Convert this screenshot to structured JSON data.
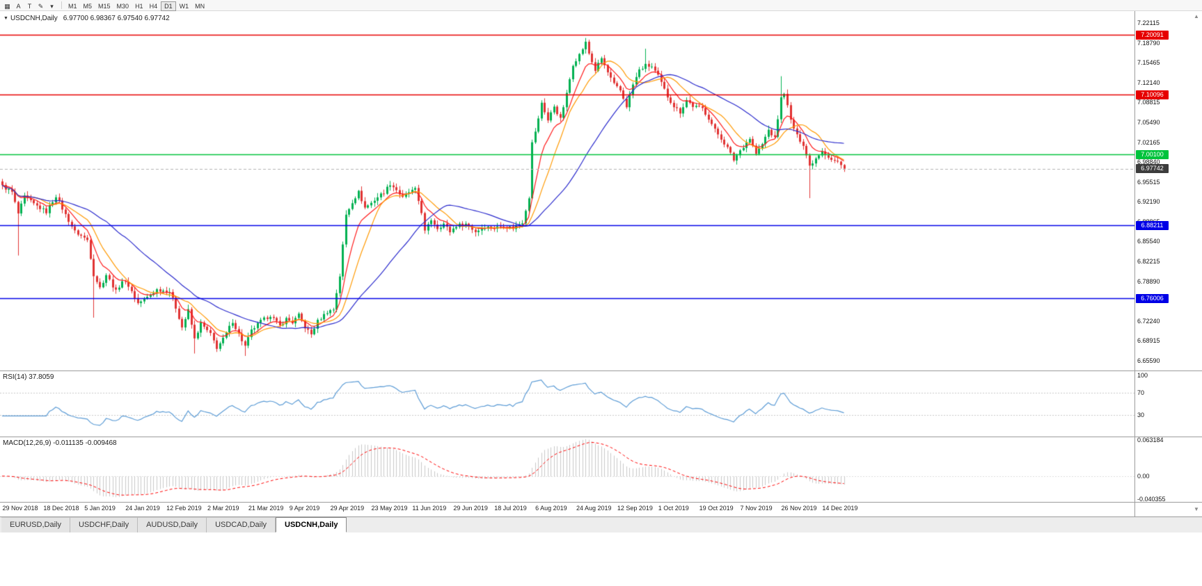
{
  "toolbar": {
    "icons": [
      {
        "name": "chart-window-icon",
        "glyph": "▦"
      },
      {
        "name": "cursor-a-icon",
        "glyph": "A"
      },
      {
        "name": "text-tool-icon",
        "glyph": "T"
      },
      {
        "name": "draw-tool-icon",
        "glyph": "✎"
      },
      {
        "name": "tool-dropdown-icon",
        "glyph": "▾"
      }
    ],
    "timeframes": [
      {
        "label": "M1",
        "active": false
      },
      {
        "label": "M5",
        "active": false
      },
      {
        "label": "M15",
        "active": false
      },
      {
        "label": "M30",
        "active": false
      },
      {
        "label": "H1",
        "active": false
      },
      {
        "label": "H4",
        "active": false
      },
      {
        "label": "D1",
        "active": true
      },
      {
        "label": "W1",
        "active": false
      },
      {
        "label": "MN",
        "active": false
      }
    ]
  },
  "chart": {
    "symbol_legend": "USDCNH,Daily",
    "ohlc_text": "6.97700 6.98367 6.97540 6.97742",
    "expand_glyph": "▼",
    "price_axis": {
      "min": 6.6396,
      "max": 7.2409
    },
    "price_axis_labels": [
      "7.22115",
      "7.18790",
      "7.15465",
      "7.12140",
      "7.08815",
      "7.05490",
      "7.02165",
      "6.98840",
      "6.95515",
      "6.92190",
      "6.88865",
      "6.85540",
      "6.82215",
      "6.78890",
      "6.75565",
      "6.72240",
      "6.68915",
      "6.65590"
    ],
    "hlines": [
      {
        "price": 7.20091,
        "label": "7.20091",
        "color": "#e60000"
      },
      {
        "price": 7.10096,
        "label": "7.10096",
        "color": "#e60000"
      },
      {
        "price": 7.001,
        "label": "7.00100",
        "color": "#00c33c"
      },
      {
        "price": 6.88211,
        "label": "6.88211",
        "color": "#0000e6"
      },
      {
        "price": 6.76006,
        "label": "6.76006",
        "color": "#0000e6"
      }
    ],
    "current_price": {
      "value": 6.97742,
      "label": "6.97742",
      "line_color": "#b0b0b0",
      "tag_bg": "#3c3c3c"
    }
  },
  "rsi": {
    "legend": "RSI(14) 37.8059",
    "period": 14,
    "line_color": "#5b9bd5",
    "level_line_color": "#c8c8c8",
    "levels": [
      {
        "value": 100,
        "label": "100"
      },
      {
        "value": 70,
        "label": "70"
      },
      {
        "value": 30,
        "label": "30"
      }
    ]
  },
  "macd": {
    "legend": "MACD(12,26,9) -0.011135 -0.009468",
    "fast": 12,
    "slow": 26,
    "signal": 9,
    "histogram_color": "#c8c8c8",
    "signal_color": "#ff0000",
    "range": {
      "min": -0.040355,
      "max": 0.063184
    },
    "axis_labels": [
      {
        "value": 0.063184,
        "label": "0.063184"
      },
      {
        "value": 0,
        "label": "0.00"
      },
      {
        "value": -0.040355,
        "label": "-0.040355"
      }
    ]
  },
  "date_axis": {
    "labels": [
      {
        "text": "29 Nov 2018",
        "bar": 1
      },
      {
        "text": "18 Dec 2018",
        "bar": 14
      },
      {
        "text": "5 Jan 2019",
        "bar": 27
      },
      {
        "text": "24 Jan 2019",
        "bar": 40
      },
      {
        "text": "12 Feb 2019",
        "bar": 53
      },
      {
        "text": "2 Mar 2019",
        "bar": 66
      },
      {
        "text": "21 Mar 2019",
        "bar": 79
      },
      {
        "text": "9 Apr 2019",
        "bar": 92
      },
      {
        "text": "29 Apr 2019",
        "bar": 105
      },
      {
        "text": "23 May 2019",
        "bar": 118
      },
      {
        "text": "11 Jun 2019",
        "bar": 131
      },
      {
        "text": "29 Jun 2019",
        "bar": 144
      },
      {
        "text": "18 Jul 2019",
        "bar": 157
      },
      {
        "text": "6 Aug 2019",
        "bar": 170
      },
      {
        "text": "24 Aug 2019",
        "bar": 183
      },
      {
        "text": "12 Sep 2019",
        "bar": 196
      },
      {
        "text": "1 Oct 2019",
        "bar": 209
      },
      {
        "text": "19 Oct 2019",
        "bar": 222
      },
      {
        "text": "7 Nov 2019",
        "bar": 235
      },
      {
        "text": "26 Nov 2019",
        "bar": 248
      },
      {
        "text": "14 Dec 2019",
        "bar": 261
      }
    ]
  },
  "tabs": [
    {
      "label": "EURUSD,Daily",
      "active": false
    },
    {
      "label": "USDCHF,Daily",
      "active": false
    },
    {
      "label": "AUDUSD,Daily",
      "active": false
    },
    {
      "label": "USDCAD,Daily",
      "active": false
    },
    {
      "label": "USDCNH,Daily",
      "active": true
    }
  ],
  "scrollbar": {
    "up_glyph": "▲",
    "down_glyph": "▼"
  },
  "chart_data": {
    "type": "candlestick",
    "symbol": "USDCNH",
    "timeframe": "Daily",
    "bars": 268,
    "noise": 0.006,
    "wick": 0.006,
    "up_color": "#00b050",
    "down_color": "#e03232",
    "close_anchors": [
      [
        0,
        6.948
      ],
      [
        3,
        6.938
      ],
      [
        5,
        6.902
      ],
      [
        7,
        6.93
      ],
      [
        10,
        6.918
      ],
      [
        14,
        6.905
      ],
      [
        17,
        6.932
      ],
      [
        20,
        6.9
      ],
      [
        23,
        6.872
      ],
      [
        27,
        6.858
      ],
      [
        29,
        6.8
      ],
      [
        31,
        6.778
      ],
      [
        33,
        6.8
      ],
      [
        36,
        6.772
      ],
      [
        38,
        6.79
      ],
      [
        40,
        6.782
      ],
      [
        43,
        6.752
      ],
      [
        46,
        6.762
      ],
      [
        49,
        6.775
      ],
      [
        53,
        6.772
      ],
      [
        55,
        6.745
      ],
      [
        57,
        6.712
      ],
      [
        59,
        6.74
      ],
      [
        61,
        6.692
      ],
      [
        63,
        6.718
      ],
      [
        66,
        6.7
      ],
      [
        68,
        6.678
      ],
      [
        70,
        6.692
      ],
      [
        73,
        6.722
      ],
      [
        75,
        6.7
      ],
      [
        77,
        6.68
      ],
      [
        79,
        6.706
      ],
      [
        82,
        6.722
      ],
      [
        85,
        6.732
      ],
      [
        88,
        6.714
      ],
      [
        90,
        6.726
      ],
      [
        92,
        6.72
      ],
      [
        94,
        6.732
      ],
      [
        96,
        6.712
      ],
      [
        98,
        6.7
      ],
      [
        100,
        6.722
      ],
      [
        103,
        6.738
      ],
      [
        105,
        6.742
      ],
      [
        107,
        6.798
      ],
      [
        109,
        6.9
      ],
      [
        111,
        6.922
      ],
      [
        113,
        6.938
      ],
      [
        115,
        6.912
      ],
      [
        117,
        6.92
      ],
      [
        119,
        6.93
      ],
      [
        121,
        6.938
      ],
      [
        123,
        6.952
      ],
      [
        125,
        6.942
      ],
      [
        127,
        6.928
      ],
      [
        129,
        6.938
      ],
      [
        131,
        6.942
      ],
      [
        133,
        6.905
      ],
      [
        134,
        6.872
      ],
      [
        136,
        6.892
      ],
      [
        138,
        6.878
      ],
      [
        140,
        6.885
      ],
      [
        142,
        6.872
      ],
      [
        144,
        6.882
      ],
      [
        147,
        6.885
      ],
      [
        150,
        6.872
      ],
      [
        153,
        6.88
      ],
      [
        156,
        6.878
      ],
      [
        159,
        6.882
      ],
      [
        162,
        6.878
      ],
      [
        165,
        6.888
      ],
      [
        167,
        6.93
      ],
      [
        168,
        7.02
      ],
      [
        170,
        7.06
      ],
      [
        171,
        7.088
      ],
      [
        173,
        7.058
      ],
      [
        175,
        7.082
      ],
      [
        177,
        7.06
      ],
      [
        179,
        7.102
      ],
      [
        181,
        7.152
      ],
      [
        183,
        7.168
      ],
      [
        185,
        7.188
      ],
      [
        186,
        7.17
      ],
      [
        188,
        7.142
      ],
      [
        190,
        7.162
      ],
      [
        192,
        7.138
      ],
      [
        194,
        7.118
      ],
      [
        196,
        7.108
      ],
      [
        198,
        7.082
      ],
      [
        200,
        7.118
      ],
      [
        202,
        7.142
      ],
      [
        204,
        7.15
      ],
      [
        206,
        7.148
      ],
      [
        208,
        7.132
      ],
      [
        211,
        7.098
      ],
      [
        213,
        7.082
      ],
      [
        215,
        7.072
      ],
      [
        217,
        7.092
      ],
      [
        219,
        7.082
      ],
      [
        222,
        7.078
      ],
      [
        224,
        7.062
      ],
      [
        226,
        7.042
      ],
      [
        228,
        7.028
      ],
      [
        230,
        7.012
      ],
      [
        232,
        6.992
      ],
      [
        234,
        7.008
      ],
      [
        237,
        7.028
      ],
      [
        239,
        7.002
      ],
      [
        241,
        7.018
      ],
      [
        243,
        7.042
      ],
      [
        245,
        7.028
      ],
      [
        247,
        7.095
      ],
      [
        248,
        7.105
      ],
      [
        250,
        7.058
      ],
      [
        252,
        7.032
      ],
      [
        254,
        7.018
      ],
      [
        256,
        6.982
      ],
      [
        258,
        6.995
      ],
      [
        260,
        7.008
      ],
      [
        261,
        7.002
      ],
      [
        263,
        6.992
      ],
      [
        265,
        6.988
      ],
      [
        267,
        6.97742
      ]
    ],
    "wick_overrides": [
      {
        "bar": 5,
        "low": 6.832
      },
      {
        "bar": 29,
        "low": 6.728
      },
      {
        "bar": 61,
        "low": 6.668
      },
      {
        "bar": 77,
        "low": 6.664
      },
      {
        "bar": 168,
        "low": 6.925
      },
      {
        "bar": 185,
        "high": 7.196
      },
      {
        "bar": 204,
        "high": 7.178
      },
      {
        "bar": 247,
        "high": 7.132
      },
      {
        "bar": 256,
        "low": 6.928
      }
    ],
    "moving_averages": [
      {
        "name": "fast-ma",
        "period": 8,
        "type": "ema",
        "color": "#ff1a1a"
      },
      {
        "name": "mid-ma",
        "period": 13,
        "type": "sma",
        "color": "#ff9900"
      },
      {
        "name": "slow-ma",
        "period": 34,
        "type": "sma",
        "color": "#2929cc"
      }
    ]
  }
}
